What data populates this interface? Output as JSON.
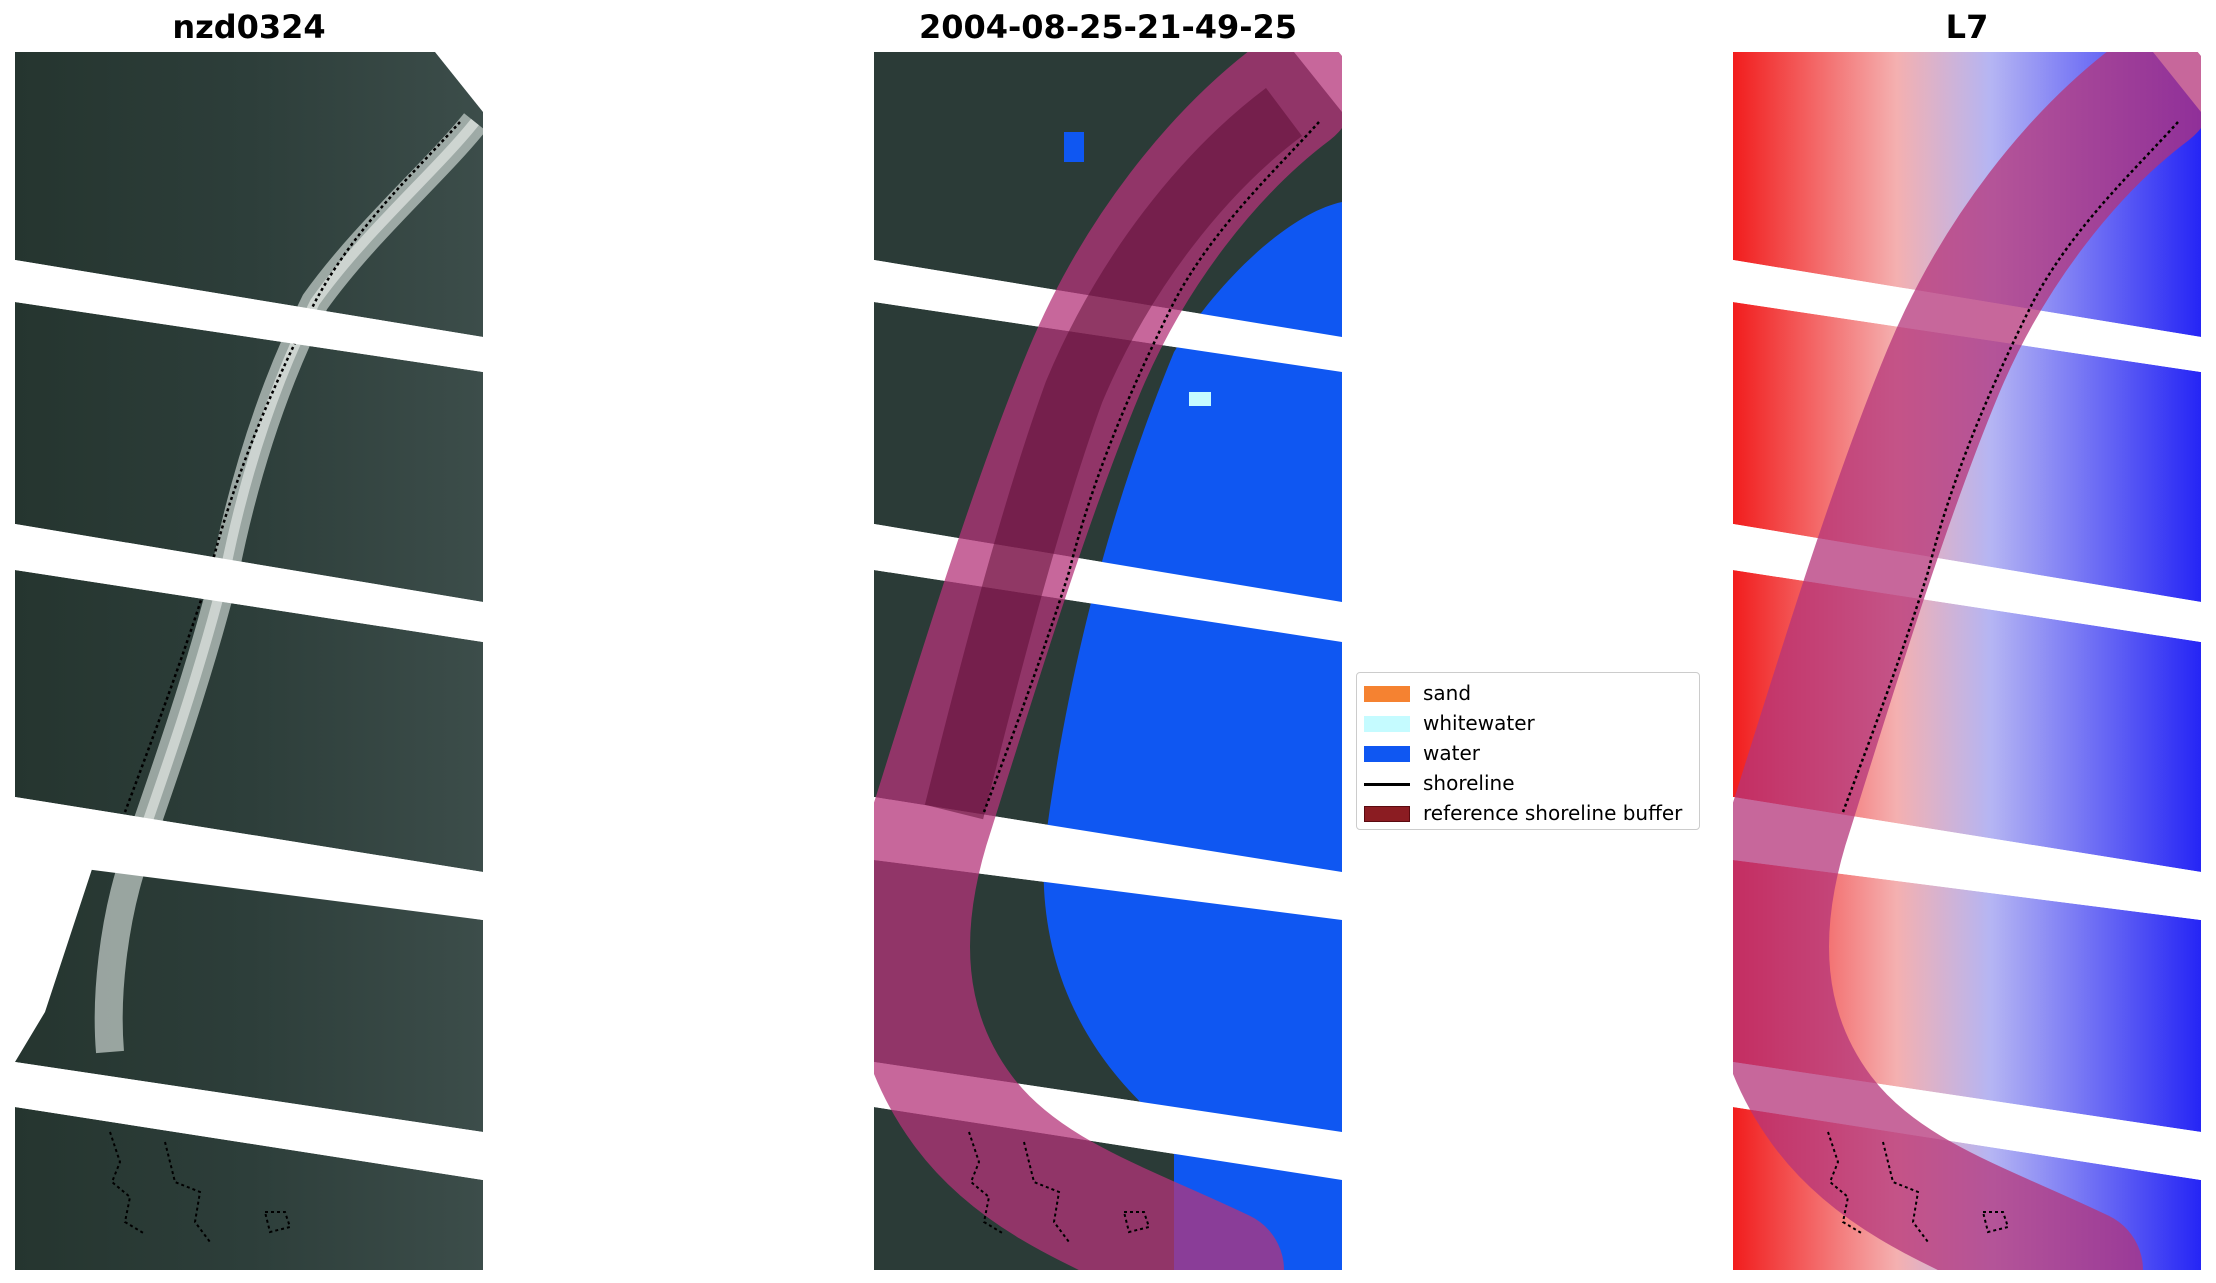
{
  "panels": [
    {
      "title": "nzd0324",
      "icon": "rgb-satellite-image"
    },
    {
      "title": "2004-08-25-21-49-25",
      "icon": "classified-image"
    },
    {
      "title": "L7",
      "icon": "water-index-image"
    }
  ],
  "legend": {
    "items": [
      {
        "label": "sand",
        "color": "#f58231"
      },
      {
        "label": "whitewater",
        "color": "#c5fbff"
      },
      {
        "label": "water",
        "color": "#0f57f2"
      },
      {
        "label": "shoreline",
        "color": "#000000"
      },
      {
        "label": "reference shoreline buffer",
        "color": "#8b1c22"
      }
    ]
  },
  "colors": {
    "land_dark": "#2a3a36",
    "sea_green": "#4a5a55",
    "buffer": "#b4347a",
    "water": "#0f57f2",
    "index_land": "#f21d1d",
    "index_water": "#2525f5"
  }
}
